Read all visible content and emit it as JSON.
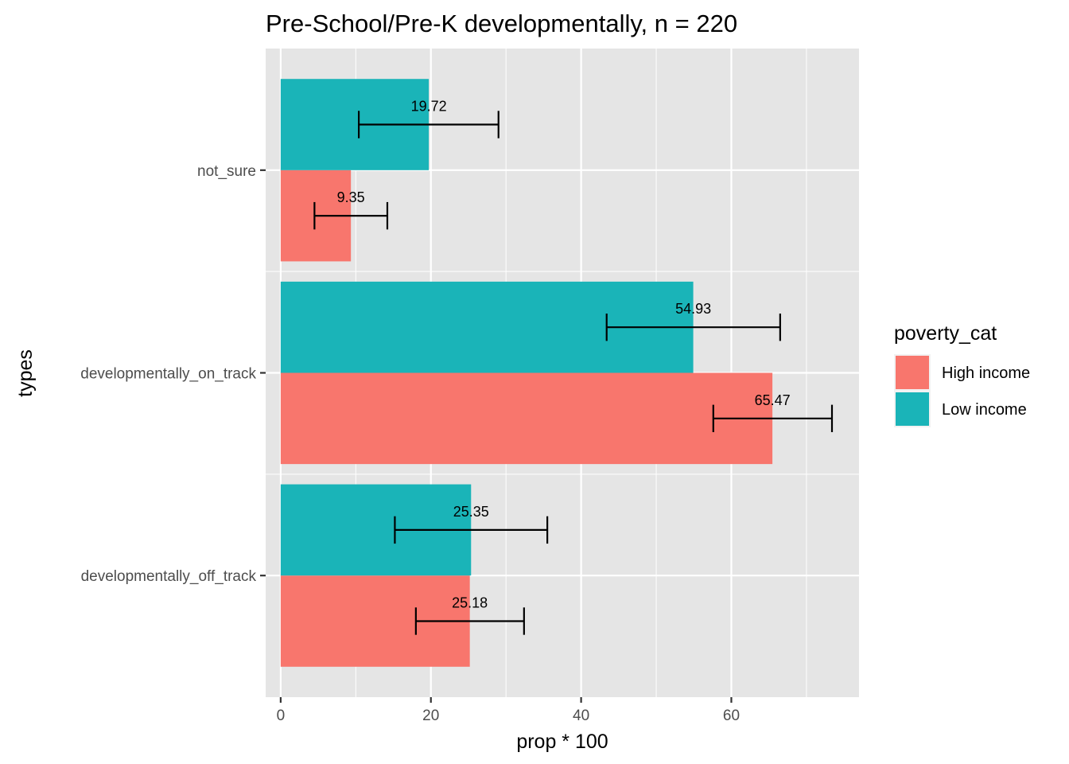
{
  "chart_data": {
    "type": "bar",
    "orientation": "horizontal",
    "title": "Pre-School/Pre-K developmentally, n = 220",
    "xlabel": "prop * 100",
    "ylabel": "types",
    "categories": [
      "developmentally_off_track",
      "developmentally_on_track",
      "not_sure"
    ],
    "xlim": [
      -2,
      77
    ],
    "x_ticks": [
      0,
      20,
      40,
      60
    ],
    "x_tick_labels": [
      "0",
      "20",
      "40",
      "60"
    ],
    "series": [
      {
        "name": "High income",
        "color": "#F8766D",
        "values": [
          25.18,
          65.47,
          9.35
        ],
        "labels": [
          "25.18",
          "65.47",
          "9.35"
        ],
        "ci_low": [
          18.0,
          57.6,
          4.5
        ],
        "ci_high": [
          32.4,
          73.4,
          14.2
        ]
      },
      {
        "name": "Low income",
        "color": "#1AB4B8",
        "values": [
          25.35,
          54.93,
          19.72
        ],
        "labels": [
          "25.35",
          "54.93",
          "19.72"
        ],
        "ci_low": [
          15.2,
          43.4,
          10.4
        ],
        "ci_high": [
          35.5,
          66.5,
          29.0
        ]
      }
    ],
    "legend": {
      "title": "poverty_cat",
      "position": "right"
    },
    "grid": true,
    "panel_background": "#E5E5E5"
  }
}
